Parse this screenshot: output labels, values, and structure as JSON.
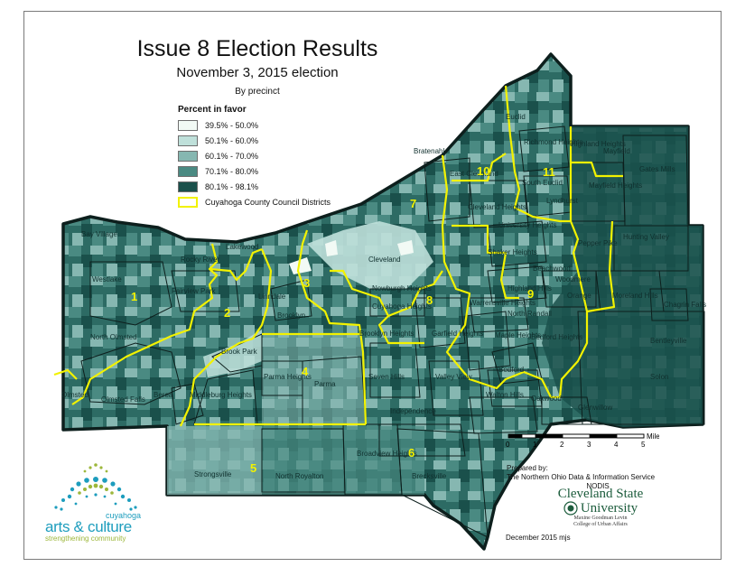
{
  "title": "Issue 8 Election Results",
  "subtitle": "November 3, 2015 election",
  "byline": "By precinct",
  "legend": {
    "title": "Percent in favor",
    "classes": [
      {
        "label": "39.5% -  50.0%",
        "color": "#f2faf5"
      },
      {
        "label": "50.1% -  60.0%",
        "color": "#bfe0da"
      },
      {
        "label": "60.1% -  70.0%",
        "color": "#86b7b1"
      },
      {
        "label": "70.1% -  80.0%",
        "color": "#4a8a82"
      },
      {
        "label": "80.1% -  98.1%",
        "color": "#1a504b"
      }
    ],
    "district_line_label": "Cuyahoga County Council Districts",
    "district_line_color": "#f2f200"
  },
  "scale": {
    "ticks": [
      "0",
      "1",
      "2",
      "3",
      "4",
      "5"
    ],
    "unit": "Miles"
  },
  "places": [
    "Euclid",
    "Richmond Heights",
    "Highland Heights",
    "Mayfield",
    "Gates Mills",
    "Bratenahl",
    "East Cleveland",
    "South Euclid",
    "Lyndhurst",
    "Mayfield Heights",
    "Cleveland Heights",
    "University Heights",
    "Pepper Pike",
    "Hunting Valley",
    "Bay Village",
    "Lakewood",
    "Rocky River",
    "Cleveland",
    "Shaker Heights",
    "Beachwood",
    "Woodmere",
    "Orange",
    "Westlake",
    "Fairview Park",
    "Linndale",
    "Brooklyn",
    "Newburgh Heights",
    "Cuyahoga Heights",
    "Warrensville Heights",
    "Highland Hills",
    "North Randall",
    "Moreland Hills",
    "Chagrin Falls",
    "North Olmsted",
    "Garfield Heights",
    "Maple Heights",
    "Bedford Heights",
    "Bentleyville",
    "Brook Park",
    "Brooklyn Heights",
    "Parma Heights",
    "Parma",
    "Seven Hills",
    "Valley View",
    "Bedford",
    "Solon",
    "Olmsted",
    "Olmsted Falls",
    "Berea",
    "Middleburg Heights",
    "Independence",
    "Walton Hills",
    "Oakwood",
    "Glenwillow",
    "Broadview Heights",
    "Strongsville",
    "North Royalton",
    "Brecksville"
  ],
  "districts": [
    "1",
    "2",
    "3",
    "4",
    "5",
    "6",
    "7",
    "8",
    "9",
    "10",
    "11"
  ],
  "credit": {
    "prepared_by": "Prepared by:",
    "org": "The Northern Ohio Data & Information Service",
    "acronym": "NODIS",
    "university_line1": "Cleveland State",
    "university_line2": "University",
    "college_line1": "Maxine Goodman Levin",
    "college_line2": "College of Urban Affairs",
    "date": "December 2015 mjs"
  },
  "partner": {
    "county": "cuyahoga",
    "name": "arts & culture",
    "tagline": "strengthening community"
  }
}
